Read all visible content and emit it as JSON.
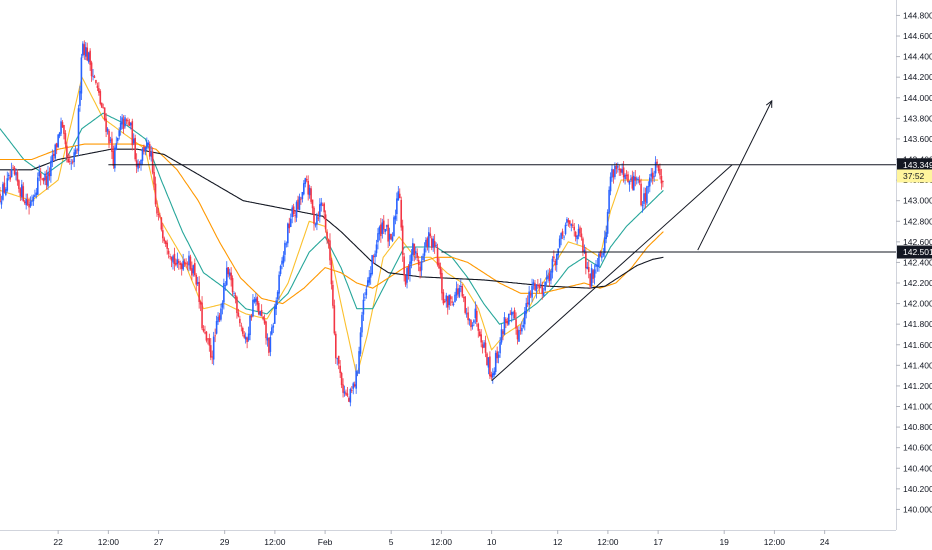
{
  "chart_data": {
    "type": "candlestick",
    "y_ticks": [
      "144.800",
      "144.600",
      "144.400",
      "144.200",
      "144.000",
      "143.800",
      "143.600",
      "143.400",
      "143.200",
      "143.000",
      "142.800",
      "142.600",
      "142.400",
      "142.200",
      "142.000",
      "141.800",
      "141.600",
      "141.400",
      "141.200",
      "141.000",
      "140.800",
      "140.600",
      "140.400",
      "140.200",
      "140.000"
    ],
    "y_tick_values": [
      144.8,
      144.6,
      144.4,
      144.2,
      144.0,
      143.8,
      143.6,
      143.4,
      143.2,
      143.0,
      142.8,
      142.6,
      142.4,
      142.2,
      142.0,
      141.8,
      141.6,
      141.4,
      141.2,
      141.0,
      140.8,
      140.6,
      140.4,
      140.2,
      140.0
    ],
    "ylim": [
      139.8,
      144.95
    ],
    "x_ticks": [
      {
        "label": "22",
        "t": 5
      },
      {
        "label": "12:00",
        "t": 24
      },
      {
        "label": "27",
        "t": 43
      },
      {
        "label": "29",
        "t": 68
      },
      {
        "label": "12:00",
        "t": 87
      },
      {
        "label": "Feb",
        "t": 106
      },
      {
        "label": "5",
        "t": 131
      },
      {
        "label": "12:00",
        "t": 150
      },
      {
        "label": "10",
        "t": 169
      },
      {
        "label": "12",
        "t": 194
      },
      {
        "label": "12:00",
        "t": 213
      },
      {
        "label": "17",
        "t": 232
      },
      {
        "label": "19",
        "t": 257
      },
      {
        "label": "12:00",
        "t": 276
      },
      {
        "label": "24",
        "t": 295
      }
    ],
    "xlim": [
      -17,
      322
    ],
    "price_tags": [
      {
        "label": "143.349",
        "value": 143.349,
        "style": "dark"
      },
      {
        "label": "37:52",
        "value": 143.24,
        "style": "yellow"
      },
      {
        "label": "142.501",
        "value": 142.501,
        "style": "dark"
      }
    ],
    "horizontal_lines": [
      {
        "value": 143.349,
        "t_start": 24
      },
      {
        "value": 142.501,
        "t_start": 150
      }
    ],
    "trendline": {
      "points": [
        [
          169,
          141.25
        ],
        [
          260,
          143.349
        ]
      ]
    },
    "projection": {
      "points": [
        [
          247,
          142.52
        ],
        [
          275,
          143.97
        ]
      ]
    },
    "close_anchors": [
      [
        -17,
        143.05
      ],
      [
        -12,
        143.25
      ],
      [
        -6,
        142.95
      ],
      [
        -2,
        143.25
      ],
      [
        1,
        143.2
      ],
      [
        4,
        143.5
      ],
      [
        6,
        143.75
      ],
      [
        9,
        143.3
      ],
      [
        12,
        143.45
      ],
      [
        14,
        144.55
      ],
      [
        17,
        144.35
      ],
      [
        20,
        144.05
      ],
      [
        24,
        143.65
      ],
      [
        26,
        143.4
      ],
      [
        29,
        143.75
      ],
      [
        32,
        143.75
      ],
      [
        35,
        143.35
      ],
      [
        38,
        143.55
      ],
      [
        40,
        143.45
      ],
      [
        42,
        142.9
      ],
      [
        44,
        142.75
      ],
      [
        47,
        142.55
      ],
      [
        50,
        142.35
      ],
      [
        53,
        142.45
      ],
      [
        57,
        142.3
      ],
      [
        60,
        141.7
      ],
      [
        63,
        141.5
      ],
      [
        66,
        141.9
      ],
      [
        69,
        142.3
      ],
      [
        72,
        142.05
      ],
      [
        76,
        141.6
      ],
      [
        79,
        142.05
      ],
      [
        82,
        141.85
      ],
      [
        85,
        141.55
      ],
      [
        87,
        141.95
      ],
      [
        90,
        142.45
      ],
      [
        93,
        142.85
      ],
      [
        96,
        142.95
      ],
      [
        99,
        143.2
      ],
      [
        102,
        142.8
      ],
      [
        105,
        143.0
      ],
      [
        108,
        142.4
      ],
      [
        110,
        141.55
      ],
      [
        113,
        141.15
      ],
      [
        115,
        141.05
      ],
      [
        118,
        141.3
      ],
      [
        120,
        141.9
      ],
      [
        123,
        142.3
      ],
      [
        126,
        142.65
      ],
      [
        128,
        142.8
      ],
      [
        131,
        142.55
      ],
      [
        134,
        143.2
      ],
      [
        136,
        142.15
      ],
      [
        139,
        142.55
      ],
      [
        142,
        142.35
      ],
      [
        145,
        142.65
      ],
      [
        148,
        142.5
      ],
      [
        151,
        142.0
      ],
      [
        154,
        142.05
      ],
      [
        157,
        142.15
      ],
      [
        160,
        141.8
      ],
      [
        163,
        141.9
      ],
      [
        166,
        141.6
      ],
      [
        169,
        141.3
      ],
      [
        172,
        141.6
      ],
      [
        174,
        141.85
      ],
      [
        177,
        141.85
      ],
      [
        179,
        141.7
      ],
      [
        182,
        141.95
      ],
      [
        185,
        142.2
      ],
      [
        188,
        142.15
      ],
      [
        191,
        142.3
      ],
      [
        194,
        142.5
      ],
      [
        197,
        142.75
      ],
      [
        200,
        142.75
      ],
      [
        203,
        142.6
      ],
      [
        206,
        142.2
      ],
      [
        209,
        142.45
      ],
      [
        212,
        142.6
      ],
      [
        214,
        143.25
      ],
      [
        216,
        143.35
      ],
      [
        219,
        143.2
      ],
      [
        222,
        143.15
      ],
      [
        224,
        143.25
      ],
      [
        226,
        142.95
      ],
      [
        228,
        143.15
      ],
      [
        231,
        143.3
      ],
      [
        234,
        143.22
      ]
    ],
    "ma_series": [
      {
        "color": "#fbc02d",
        "points": [
          [
            -17,
            143.1
          ],
          [
            -5,
            143.0
          ],
          [
            5,
            143.2
          ],
          [
            14,
            144.2
          ],
          [
            22,
            143.8
          ],
          [
            30,
            143.65
          ],
          [
            38,
            143.5
          ],
          [
            44,
            142.8
          ],
          [
            52,
            142.45
          ],
          [
            60,
            141.95
          ],
          [
            68,
            142.0
          ],
          [
            76,
            141.9
          ],
          [
            84,
            141.85
          ],
          [
            92,
            142.2
          ],
          [
            100,
            142.8
          ],
          [
            106,
            142.75
          ],
          [
            112,
            142.0
          ],
          [
            118,
            141.3
          ],
          [
            122,
            141.7
          ],
          [
            128,
            142.45
          ],
          [
            134,
            142.65
          ],
          [
            140,
            142.45
          ],
          [
            146,
            142.45
          ],
          [
            152,
            142.3
          ],
          [
            158,
            142.2
          ],
          [
            164,
            141.95
          ],
          [
            169,
            141.55
          ],
          [
            174,
            141.7
          ],
          [
            180,
            141.8
          ],
          [
            186,
            142.1
          ],
          [
            192,
            142.35
          ],
          [
            198,
            142.6
          ],
          [
            204,
            142.55
          ],
          [
            210,
            142.45
          ],
          [
            214,
            142.9
          ],
          [
            218,
            143.2
          ],
          [
            224,
            143.2
          ],
          [
            232,
            143.2
          ]
        ]
      },
      {
        "color": "#26a69a",
        "points": [
          [
            -17,
            143.7
          ],
          [
            -8,
            143.4
          ],
          [
            0,
            143.25
          ],
          [
            8,
            143.4
          ],
          [
            14,
            143.7
          ],
          [
            22,
            143.85
          ],
          [
            30,
            143.75
          ],
          [
            38,
            143.6
          ],
          [
            44,
            143.2
          ],
          [
            52,
            142.7
          ],
          [
            60,
            142.3
          ],
          [
            68,
            142.15
          ],
          [
            76,
            141.95
          ],
          [
            84,
            141.9
          ],
          [
            92,
            142.1
          ],
          [
            100,
            142.5
          ],
          [
            106,
            142.65
          ],
          [
            112,
            142.35
          ],
          [
            118,
            141.95
          ],
          [
            124,
            141.95
          ],
          [
            130,
            142.25
          ],
          [
            136,
            142.55
          ],
          [
            142,
            142.55
          ],
          [
            148,
            142.55
          ],
          [
            154,
            142.45
          ],
          [
            160,
            142.25
          ],
          [
            166,
            142.0
          ],
          [
            172,
            141.8
          ],
          [
            178,
            141.85
          ],
          [
            186,
            142.0
          ],
          [
            192,
            142.15
          ],
          [
            198,
            142.35
          ],
          [
            204,
            142.45
          ],
          [
            210,
            142.35
          ],
          [
            214,
            142.55
          ],
          [
            220,
            142.75
          ],
          [
            226,
            142.9
          ],
          [
            234,
            143.1
          ]
        ]
      },
      {
        "color": "#ff9800",
        "points": [
          [
            -17,
            143.4
          ],
          [
            -5,
            143.4
          ],
          [
            5,
            143.5
          ],
          [
            15,
            143.55
          ],
          [
            25,
            143.55
          ],
          [
            35,
            143.55
          ],
          [
            42,
            143.5
          ],
          [
            50,
            143.3
          ],
          [
            58,
            143.0
          ],
          [
            66,
            142.6
          ],
          [
            74,
            142.25
          ],
          [
            82,
            142.05
          ],
          [
            90,
            142.0
          ],
          [
            98,
            142.15
          ],
          [
            106,
            142.35
          ],
          [
            112,
            142.3
          ],
          [
            118,
            142.2
          ],
          [
            124,
            142.15
          ],
          [
            130,
            142.25
          ],
          [
            136,
            142.35
          ],
          [
            142,
            142.4
          ],
          [
            148,
            142.45
          ],
          [
            154,
            142.45
          ],
          [
            160,
            142.4
          ],
          [
            166,
            142.3
          ],
          [
            172,
            142.2
          ],
          [
            180,
            142.1
          ],
          [
            188,
            142.1
          ],
          [
            196,
            142.15
          ],
          [
            204,
            142.2
          ],
          [
            210,
            142.15
          ],
          [
            216,
            142.2
          ],
          [
            222,
            142.35
          ],
          [
            228,
            142.55
          ],
          [
            234,
            142.7
          ]
        ]
      },
      {
        "color": "#131722",
        "points": [
          [
            -17,
            143.3
          ],
          [
            -5,
            143.3
          ],
          [
            5,
            143.4
          ],
          [
            15,
            143.45
          ],
          [
            25,
            143.5
          ],
          [
            35,
            143.5
          ],
          [
            45,
            143.45
          ],
          [
            55,
            143.3
          ],
          [
            65,
            143.15
          ],
          [
            75,
            143.0
          ],
          [
            85,
            142.95
          ],
          [
            95,
            142.9
          ],
          [
            105,
            142.85
          ],
          [
            112,
            142.7
          ],
          [
            118,
            142.55
          ],
          [
            124,
            142.4
          ],
          [
            130,
            142.3
          ],
          [
            136,
            142.28
          ],
          [
            142,
            142.26
          ],
          [
            150,
            142.25
          ],
          [
            158,
            142.24
          ],
          [
            166,
            142.23
          ],
          [
            174,
            142.21
          ],
          [
            182,
            142.19
          ],
          [
            190,
            142.17
          ],
          [
            198,
            142.16
          ],
          [
            206,
            142.15
          ],
          [
            212,
            142.17
          ],
          [
            218,
            142.27
          ],
          [
            224,
            142.37
          ],
          [
            230,
            142.43
          ],
          [
            234,
            142.45
          ]
        ]
      }
    ]
  }
}
